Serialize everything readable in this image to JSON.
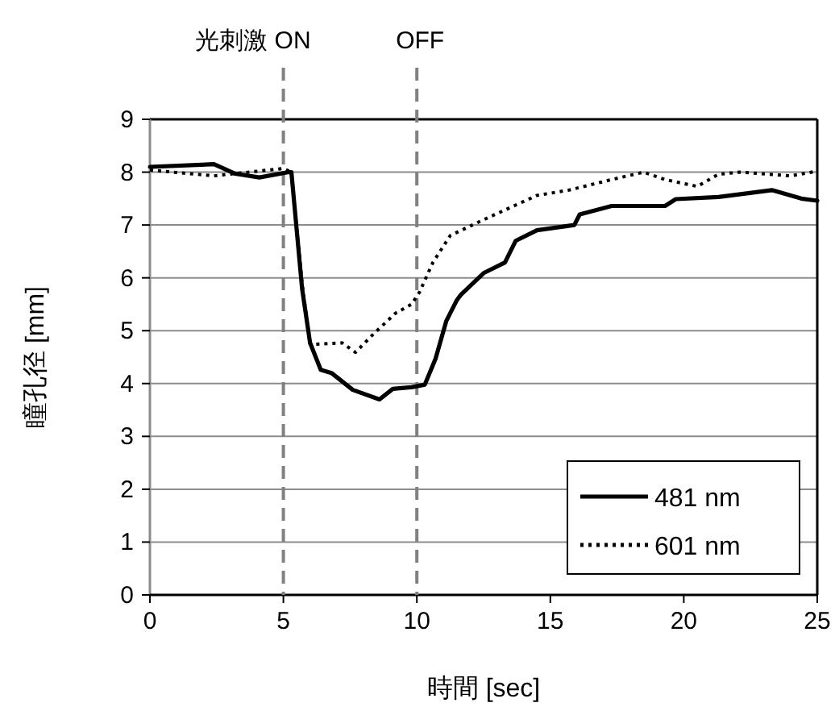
{
  "chart_data": {
    "type": "line",
    "xlabel": "時間 [sec]",
    "ylabel": "瞳孔径 [mm]",
    "xlim": [
      0,
      25
    ],
    "xticks": [
      0,
      5,
      10,
      15,
      20,
      25
    ],
    "ylim": [
      0,
      9
    ],
    "yticks": [
      0,
      1,
      2,
      3,
      4,
      5,
      6,
      7,
      8,
      9
    ],
    "grid": "y",
    "legend": "bottom right",
    "ref_lines": [
      {
        "axis": "x",
        "value": 5,
        "label": "光刺激 ON",
        "color": "#808080",
        "line_style": "dashed"
      },
      {
        "axis": "x",
        "value": 10,
        "label": "OFF",
        "color": "#808080",
        "line_style": "dashed"
      }
    ],
    "series": [
      {
        "name": "481 nm",
        "color": "#000000",
        "line_style": "solid",
        "x": [
          0,
          2.4,
          3.2,
          4.1,
          5.2,
          5.3,
          5.7,
          6.0,
          6.4,
          6.8,
          7.6,
          8.6,
          9.1,
          9.8,
          10.3,
          10.7,
          11.1,
          11.5,
          11.65,
          12.5,
          13.3,
          13.7,
          14.5,
          15.9,
          16.1,
          17.3,
          19.3,
          19.7,
          21.3,
          23.3,
          24.4,
          25
        ],
        "values": [
          8.1,
          8.15,
          7.97,
          7.9,
          8.0,
          8.0,
          5.8,
          4.77,
          4.26,
          4.2,
          3.88,
          3.7,
          3.9,
          3.93,
          3.98,
          4.47,
          5.18,
          5.58,
          5.68,
          6.09,
          6.29,
          6.7,
          6.9,
          7.0,
          7.2,
          7.36,
          7.36,
          7.49,
          7.53,
          7.66,
          7.5,
          7.46
        ]
      },
      {
        "name": "601 nm",
        "color": "#000000",
        "line_style": "dotted",
        "x": [
          0,
          2.4,
          5.0,
          5.3,
          5.7,
          6.0,
          7.2,
          7.7,
          8.4,
          9.2,
          9.8,
          10.1,
          10.6,
          11.25,
          12.5,
          14.5,
          15.7,
          17.3,
          18.5,
          19.3,
          20.5,
          21.3,
          22.1,
          24.0,
          25
        ],
        "values": [
          8.04,
          7.93,
          8.07,
          8.0,
          5.9,
          4.74,
          4.77,
          4.59,
          4.95,
          5.33,
          5.5,
          5.73,
          6.29,
          6.8,
          7.1,
          7.56,
          7.66,
          7.86,
          8.0,
          7.86,
          7.73,
          7.96,
          8.0,
          7.93,
          8.02
        ]
      }
    ]
  }
}
